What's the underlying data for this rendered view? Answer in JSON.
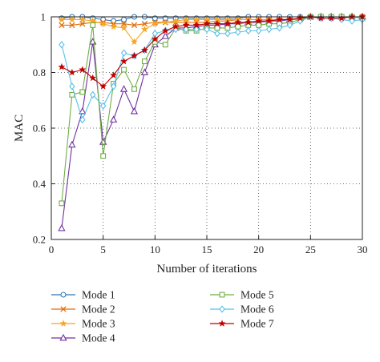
{
  "chart_data": {
    "type": "line",
    "xlabel": "Number of iterations",
    "ylabel": "MAC",
    "xlim": [
      0,
      30
    ],
    "ylim": [
      0.2,
      1.0
    ],
    "xticks": [
      0,
      5,
      10,
      15,
      20,
      25,
      30
    ],
    "yticks": [
      0.2,
      0.4,
      0.6,
      0.8,
      1.0
    ],
    "ytick_labels": [
      "0.2",
      "0.4",
      "0.6",
      "0.8",
      "1"
    ],
    "grid": "dotted",
    "legend_position": "below",
    "x": [
      1,
      2,
      3,
      4,
      5,
      6,
      7,
      8,
      9,
      10,
      11,
      12,
      13,
      14,
      15,
      16,
      17,
      18,
      19,
      20,
      21,
      22,
      23,
      24,
      25,
      26,
      27,
      28,
      29,
      30
    ],
    "series": [
      {
        "name": "Mode 1",
        "color": "#2e75b6",
        "marker": "circle",
        "values": [
          0.995,
          1.0,
          1.0,
          0.995,
          0.99,
          0.985,
          0.99,
          1.0,
          1.0,
          0.995,
          0.995,
          0.995,
          0.995,
          0.995,
          0.995,
          0.995,
          0.995,
          0.995,
          1.0,
          1.0,
          1.0,
          1.0,
          1.0,
          1.0,
          1.0,
          1.0,
          1.0,
          1.0,
          1.0,
          1.0
        ]
      },
      {
        "name": "Mode 2",
        "color": "#e46c0a",
        "marker": "x",
        "values": [
          0.97,
          0.97,
          0.975,
          0.98,
          0.98,
          0.975,
          0.975,
          0.97,
          0.975,
          0.98,
          0.98,
          0.98,
          0.98,
          0.98,
          0.98,
          0.985,
          0.985,
          0.99,
          0.99,
          0.99,
          0.99,
          0.99,
          0.99,
          0.995,
          1.0,
          1.0,
          1.0,
          1.0,
          1.0,
          1.0
        ]
      },
      {
        "name": "Mode 3",
        "color": "#f5a623",
        "marker": "star",
        "values": [
          0.99,
          0.99,
          0.99,
          0.985,
          0.975,
          0.965,
          0.96,
          0.91,
          0.955,
          0.975,
          0.98,
          0.985,
          0.99,
          0.99,
          0.99,
          0.99,
          0.99,
          0.99,
          0.99,
          0.99,
          0.99,
          0.99,
          0.99,
          0.99,
          1.0,
          1.0,
          1.0,
          1.0,
          1.0,
          1.0
        ]
      },
      {
        "name": "Mode 4",
        "color": "#7030a0",
        "marker": "triangle",
        "values": [
          0.24,
          0.54,
          0.66,
          0.91,
          0.55,
          0.63,
          0.74,
          0.66,
          0.8,
          0.9,
          0.93,
          0.96,
          0.96,
          0.965,
          0.97,
          0.97,
          0.975,
          0.975,
          0.98,
          0.98,
          0.985,
          0.985,
          0.99,
          0.995,
          1.0,
          1.0,
          1.0,
          1.0,
          1.0,
          1.0
        ]
      },
      {
        "name": "Mode 5",
        "color": "#70ad47",
        "marker": "square",
        "values": [
          0.33,
          0.72,
          0.73,
          0.97,
          0.5,
          0.76,
          0.81,
          0.74,
          0.84,
          0.91,
          0.9,
          0.96,
          0.95,
          0.95,
          0.96,
          0.96,
          0.96,
          0.965,
          0.97,
          0.97,
          0.975,
          0.975,
          0.98,
          0.99,
          1.0,
          1.0,
          1.0,
          1.0,
          1.0,
          0.995
        ]
      },
      {
        "name": "Mode 6",
        "color": "#5bc0eb",
        "marker": "diamond",
        "values": [
          0.9,
          0.75,
          0.63,
          0.72,
          0.68,
          0.75,
          0.87,
          0.86,
          0.88,
          0.94,
          0.95,
          0.955,
          0.955,
          0.955,
          0.955,
          0.94,
          0.94,
          0.945,
          0.95,
          0.95,
          0.955,
          0.96,
          0.97,
          0.985,
          1.0,
          0.995,
          0.995,
          0.99,
          0.985,
          0.99
        ]
      },
      {
        "name": "Mode 7",
        "color": "#c00000",
        "marker": "star",
        "values": [
          0.82,
          0.8,
          0.81,
          0.78,
          0.75,
          0.79,
          0.84,
          0.86,
          0.88,
          0.92,
          0.95,
          0.965,
          0.97,
          0.97,
          0.975,
          0.975,
          0.975,
          0.98,
          0.98,
          0.985,
          0.985,
          0.99,
          0.99,
          0.995,
          1.0,
          0.995,
          0.995,
          0.995,
          1.0,
          1.0
        ]
      }
    ]
  }
}
